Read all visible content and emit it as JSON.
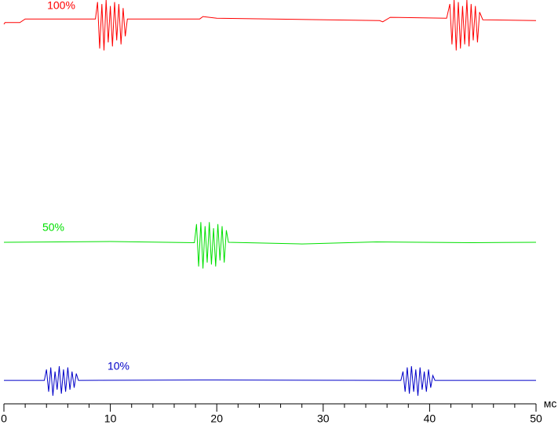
{
  "chart_data": {
    "type": "line",
    "x_label": "мс",
    "xlim": [
      0,
      50
    ],
    "xticks": [
      0,
      10,
      20,
      30,
      40,
      50
    ],
    "xminorticks": [
      2,
      4,
      6,
      8,
      12,
      14,
      16,
      18,
      22,
      24,
      26,
      28,
      32,
      34,
      36,
      38,
      42,
      44,
      46,
      48
    ],
    "ylim": [
      0,
      100
    ],
    "series": [
      {
        "name": "100%",
        "color": "#ff0000",
        "x": [
          0,
          0.1,
          1.5,
          2,
          8.6,
          8.8,
          9.0,
          9.2,
          9.4,
          9.6,
          9.8,
          10.0,
          10.2,
          10.4,
          10.6,
          10.8,
          11.0,
          11.2,
          11.4,
          11.6,
          18.4,
          18.7,
          20,
          35.3,
          35.6,
          36.3,
          41.6,
          41.9,
          42.1,
          42.3,
          42.5,
          42.7,
          42.9,
          43.1,
          43.3,
          43.5,
          43.7,
          43.9,
          44.1,
          44.3,
          44.5,
          44.7,
          45,
          50
        ],
        "values": [
          94,
          94.4,
          94.4,
          95.3,
          95.3,
          99.5,
          88,
          99,
          87.5,
          100,
          89.5,
          98.5,
          88.5,
          99.5,
          90,
          99,
          89,
          98,
          91,
          95.3,
          95.3,
          95.9,
          95.5,
          94.9,
          94.6,
          95.7,
          95.5,
          99,
          89,
          100,
          87.5,
          99.5,
          88,
          98.5,
          89,
          100,
          88.5,
          99,
          90,
          98.5,
          89.5,
          97,
          95.1,
          94.9
        ]
      },
      {
        "name": "50%",
        "color": "#00e000",
        "x": [
          0,
          10,
          17.9,
          18.1,
          18.3,
          18.5,
          18.7,
          18.9,
          19.1,
          19.3,
          19.5,
          19.7,
          19.9,
          20.1,
          20.3,
          20.5,
          20.7,
          20.9,
          21.1,
          28,
          35,
          44,
          50
        ],
        "values": [
          40,
          40.2,
          39.9,
          44.5,
          34,
          45,
          33.5,
          44,
          35,
          45,
          34.5,
          43.5,
          34,
          44.5,
          35.5,
          44,
          35,
          43,
          40,
          39.6,
          40.1,
          39.9,
          40
        ]
      },
      {
        "name": "10%",
        "color": "#0000c8",
        "x": [
          0,
          3.8,
          4.0,
          4.2,
          4.4,
          4.6,
          4.8,
          5.0,
          5.2,
          5.4,
          5.6,
          5.8,
          6.0,
          6.2,
          6.4,
          6.6,
          6.8,
          7,
          20,
          37.3,
          37.5,
          37.7,
          37.9,
          38.1,
          38.3,
          38.5,
          38.7,
          38.9,
          39.1,
          39.3,
          39.5,
          39.7,
          39.9,
          40.1,
          40.3,
          40.5,
          50
        ],
        "values": [
          5.8,
          5.8,
          8.5,
          3,
          9,
          2,
          8,
          3.5,
          9.3,
          2.5,
          8.5,
          3,
          9,
          3.5,
          8,
          4,
          7.5,
          5.8,
          5.9,
          5.8,
          8,
          3,
          9,
          2.5,
          9.3,
          3,
          8.5,
          2,
          9,
          3.5,
          8,
          3,
          8.5,
          4,
          7,
          5.8,
          5.8
        ]
      }
    ]
  }
}
